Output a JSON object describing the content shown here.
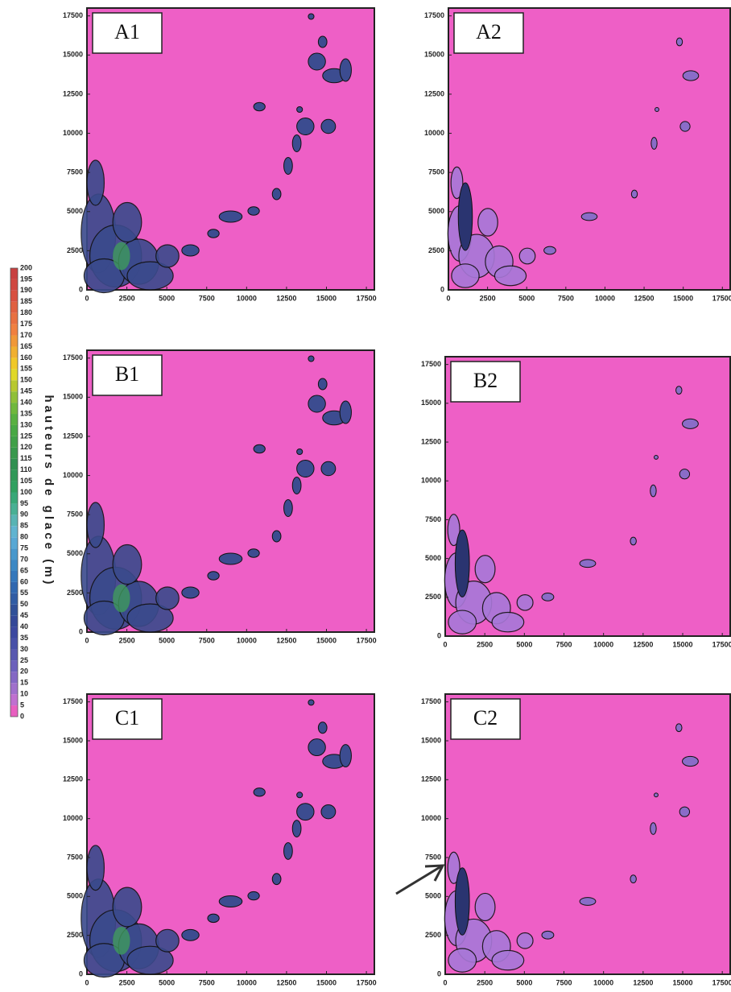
{
  "chart_data": [
    {
      "type": "contour",
      "title": "A1",
      "xlim": [
        0,
        18000
      ],
      "ylim": [
        0,
        18000
      ],
      "xticks": [
        0,
        2500,
        5000,
        7500,
        10000,
        12500,
        15000,
        17500
      ],
      "yticks": [
        0,
        2500,
        5000,
        7500,
        10000,
        12500,
        15000,
        17500
      ],
      "background": "#ee5fc6"
    },
    {
      "type": "contour",
      "title": "A2",
      "xlim": [
        0,
        18000
      ],
      "ylim": [
        0,
        18000
      ],
      "xticks": [
        0,
        2500,
        5000,
        7500,
        10000,
        12500,
        15000,
        17500
      ],
      "yticks": [
        0,
        2500,
        5000,
        7500,
        10000,
        12500,
        15000,
        17500
      ],
      "background": "#ee5fc6"
    },
    {
      "type": "contour",
      "title": "B1",
      "xlim": [
        0,
        18000
      ],
      "ylim": [
        0,
        18000
      ],
      "xticks": [
        0,
        2500,
        5000,
        7500,
        10000,
        12500,
        15000,
        17500
      ],
      "yticks": [
        0,
        2500,
        5000,
        7500,
        10000,
        12500,
        15000,
        17500
      ],
      "background": "#ee5fc6"
    },
    {
      "type": "contour",
      "title": "B2",
      "xlim": [
        0,
        18000
      ],
      "ylim": [
        0,
        18000
      ],
      "xticks": [
        0,
        2500,
        5000,
        7500,
        10000,
        12500,
        15000,
        17500
      ],
      "yticks": [
        0,
        2500,
        5000,
        7500,
        10000,
        12500,
        15000,
        17500
      ],
      "background": "#ee5fc6"
    },
    {
      "type": "contour",
      "title": "C1",
      "xlim": [
        0,
        18000
      ],
      "ylim": [
        0,
        18000
      ],
      "xticks": [
        0,
        2500,
        5000,
        7500,
        10000,
        12500,
        15000,
        17500
      ],
      "yticks": [
        0,
        2500,
        5000,
        7500,
        10000,
        12500,
        15000,
        17500
      ],
      "background": "#ee5fc6"
    },
    {
      "type": "contour",
      "title": "C2",
      "xlim": [
        0,
        18000
      ],
      "ylim": [
        0,
        18000
      ],
      "xticks": [
        0,
        2500,
        5000,
        7500,
        10000,
        12500,
        15000,
        17500
      ],
      "yticks": [
        0,
        2500,
        5000,
        7500,
        10000,
        12500,
        15000,
        17500
      ],
      "background": "#ee5fc6"
    }
  ],
  "colorbar": {
    "label": "hauteurs de glace (m)",
    "ticks": [
      0,
      5,
      10,
      15,
      20,
      25,
      30,
      35,
      40,
      45,
      50,
      55,
      60,
      65,
      70,
      75,
      80,
      85,
      90,
      95,
      100,
      105,
      110,
      115,
      120,
      125,
      130,
      135,
      140,
      145,
      150,
      155,
      160,
      165,
      170,
      175,
      180,
      185,
      190,
      195,
      200
    ],
    "colors": [
      "#e85fc0",
      "#c070d0",
      "#a070cc",
      "#8468c4",
      "#6c60bc",
      "#5858b0",
      "#4850a8",
      "#3c48a0",
      "#344898",
      "#305098",
      "#305ca4",
      "#3068b0",
      "#3478bc",
      "#3c88c4",
      "#4898cc",
      "#58a8d4",
      "#60b4d0",
      "#58b4b4",
      "#48b094",
      "#38a878",
      "#30a060",
      "#309858",
      "#309050",
      "#38984c",
      "#40a048",
      "#48a844",
      "#58b040",
      "#70b83c",
      "#90c038",
      "#b8c830",
      "#e0d828",
      "#f0c828",
      "#f0b030",
      "#f09838",
      "#f08040",
      "#e87040",
      "#e06040",
      "#d85040",
      "#d04840",
      "#c84040"
    ]
  }
}
